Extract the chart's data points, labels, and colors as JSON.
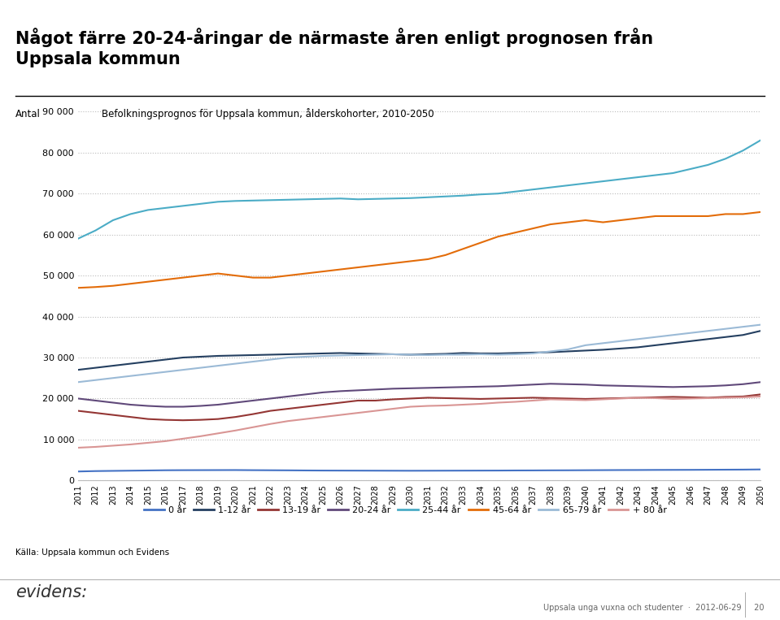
{
  "title_main": "Något färre 20-24-åringar de närmaste åren enligt prognosen från\nUppsala kommun",
  "chart_title": "Befolkningsprognos för Uppsala kommun, ålderskohorter, 2010-2050",
  "ylabel": "Antal",
  "source": "Källa: Uppsala kommun och Evidens",
  "footer": "Uppsala unga vuxna och studenter  ·  2012-06-29     20",
  "years": [
    2011,
    2012,
    2013,
    2014,
    2015,
    2016,
    2017,
    2018,
    2019,
    2020,
    2021,
    2022,
    2023,
    2024,
    2025,
    2026,
    2027,
    2028,
    2029,
    2030,
    2031,
    2032,
    2033,
    2034,
    2035,
    2036,
    2037,
    2038,
    2039,
    2040,
    2041,
    2042,
    2043,
    2044,
    2045,
    2046,
    2047,
    2048,
    2049,
    2050
  ],
  "series": [
    {
      "name": "0 år",
      "color": "#4472C4",
      "data": [
        2200,
        2300,
        2350,
        2400,
        2450,
        2500,
        2520,
        2530,
        2540,
        2550,
        2520,
        2500,
        2480,
        2450,
        2430,
        2420,
        2410,
        2400,
        2390,
        2380,
        2390,
        2400,
        2410,
        2420,
        2430,
        2450,
        2460,
        2480,
        2490,
        2510,
        2530,
        2550,
        2560,
        2580,
        2590,
        2600,
        2620,
        2640,
        2660,
        2700
      ]
    },
    {
      "name": "1-12 år",
      "color": "#243F60",
      "data": [
        27000,
        27500,
        28000,
        28500,
        29000,
        29500,
        30000,
        30200,
        30400,
        30500,
        30600,
        30700,
        30800,
        30900,
        31000,
        31100,
        31000,
        30900,
        30800,
        30700,
        30800,
        30900,
        31100,
        31000,
        31000,
        31100,
        31200,
        31300,
        31500,
        31700,
        31900,
        32200,
        32500,
        33000,
        33500,
        34000,
        34500,
        35000,
        35500,
        36500
      ]
    },
    {
      "name": "13-19 år",
      "color": "#943634",
      "data": [
        17000,
        16500,
        16000,
        15500,
        15000,
        14800,
        14700,
        14800,
        15000,
        15500,
        16200,
        17000,
        17500,
        18000,
        18500,
        19000,
        19500,
        19500,
        19800,
        20000,
        20200,
        20100,
        20000,
        19900,
        20000,
        20100,
        20200,
        20100,
        20000,
        19900,
        20000,
        20100,
        20200,
        20300,
        20400,
        20300,
        20200,
        20400,
        20500,
        21000
      ]
    },
    {
      "name": "20-24 år",
      "color": "#60497A",
      "data": [
        20000,
        19500,
        19000,
        18500,
        18200,
        18000,
        18000,
        18200,
        18500,
        19000,
        19500,
        20000,
        20500,
        21000,
        21500,
        21800,
        22000,
        22200,
        22400,
        22500,
        22600,
        22700,
        22800,
        22900,
        23000,
        23200,
        23400,
        23600,
        23500,
        23400,
        23200,
        23100,
        23000,
        22900,
        22800,
        22900,
        23000,
        23200,
        23500,
        24000
      ]
    },
    {
      "name": "25-44 år",
      "color": "#4BACC6",
      "data": [
        59000,
        61000,
        63500,
        65000,
        66000,
        66500,
        67000,
        67500,
        68000,
        68200,
        68300,
        68400,
        68500,
        68600,
        68700,
        68800,
        68600,
        68700,
        68800,
        68900,
        69100,
        69300,
        69500,
        69800,
        70000,
        70500,
        71000,
        71500,
        72000,
        72500,
        73000,
        73500,
        74000,
        74500,
        75000,
        76000,
        77000,
        78500,
        80500,
        83000
      ]
    },
    {
      "name": "45-64 år",
      "color": "#E36C09",
      "data": [
        47000,
        47200,
        47500,
        48000,
        48500,
        49000,
        49500,
        50000,
        50500,
        50000,
        49500,
        49500,
        50000,
        50500,
        51000,
        51500,
        52000,
        52500,
        53000,
        53500,
        54000,
        55000,
        56500,
        58000,
        59500,
        60500,
        61500,
        62500,
        63000,
        63500,
        63000,
        63500,
        64000,
        64500,
        64500,
        64500,
        64500,
        65000,
        65000,
        65500
      ]
    },
    {
      "name": "65-79 år",
      "color": "#9BBAD6",
      "data": [
        24000,
        24500,
        25000,
        25500,
        26000,
        26500,
        27000,
        27500,
        28000,
        28500,
        29000,
        29500,
        30000,
        30200,
        30400,
        30500,
        30600,
        30700,
        30800,
        30700,
        30600,
        30700,
        30700,
        30800,
        30700,
        30800,
        31000,
        31500,
        32000,
        33000,
        33500,
        34000,
        34500,
        35000,
        35500,
        36000,
        36500,
        37000,
        37500,
        38000
      ]
    },
    {
      "name": "+ 80 år",
      "color": "#D99594",
      "data": [
        8000,
        8200,
        8500,
        8800,
        9200,
        9600,
        10200,
        10800,
        11500,
        12200,
        13000,
        13800,
        14500,
        15000,
        15500,
        16000,
        16500,
        17000,
        17500,
        18000,
        18200,
        18300,
        18500,
        18700,
        19000,
        19200,
        19500,
        19800,
        19700,
        19600,
        19800,
        20000,
        20200,
        20100,
        19900,
        20000,
        20100,
        20200,
        20300,
        20500
      ]
    }
  ],
  "ylim": [
    0,
    90000
  ],
  "yticks": [
    0,
    10000,
    20000,
    30000,
    40000,
    50000,
    60000,
    70000,
    80000,
    90000
  ],
  "background_color": "#FFFFFF",
  "grid_color": "#BBBBBB"
}
